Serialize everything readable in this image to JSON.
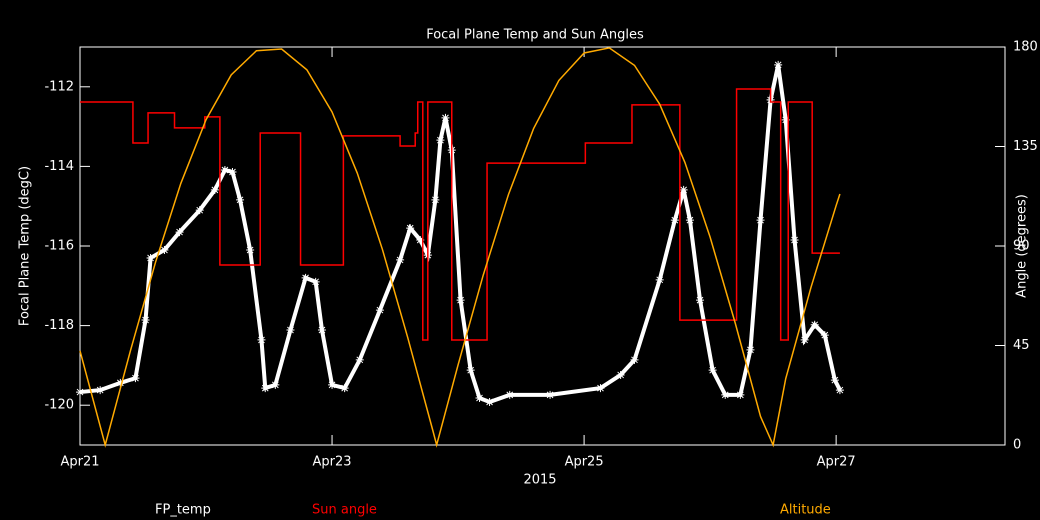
{
  "chart_data": {
    "type": "line",
    "title": "Focal Plane Temp and Sun Angles",
    "xlabel": "2015",
    "ylabel": "Focal Plane Temp (degC)",
    "y2label": "Angle (degrees)",
    "xlim": [
      0,
      7.34
    ],
    "xticks": [
      {
        "value": 0,
        "label": "Apr21"
      },
      {
        "value": 2,
        "label": "Apr23"
      },
      {
        "value": 4,
        "label": "Apr25"
      },
      {
        "value": 6,
        "label": "Apr27"
      }
    ],
    "ylim": [
      -121,
      -111
    ],
    "yticks": [
      -120,
      -118,
      -116,
      -114,
      -112
    ],
    "y2lim": [
      0,
      180
    ],
    "y2ticks": [
      0,
      45,
      90,
      135,
      180
    ],
    "series": [
      {
        "name": "FP_temp",
        "color": "#ffffff",
        "marker": "star",
        "x": [
          0,
          0.16,
          0.32,
          0.44,
          0.52,
          0.56,
          0.67,
          0.79,
          0.95,
          1.07,
          1.15,
          1.21,
          1.27,
          1.35,
          1.44,
          1.47,
          1.55,
          1.67,
          1.79,
          1.87,
          1.92,
          2.0,
          2.1,
          2.22,
          2.38,
          2.54,
          2.62,
          2.7,
          2.76,
          2.82,
          2.86,
          2.9,
          2.95,
          3.02,
          3.1,
          3.17,
          3.25,
          3.41,
          3.73,
          4.13,
          4.29,
          4.4,
          4.6,
          4.72,
          4.79,
          4.84,
          4.92,
          5.02,
          5.12,
          5.24,
          5.32,
          5.4,
          5.48,
          5.54,
          5.6,
          5.67,
          5.75,
          5.83,
          5.91,
          5.99,
          6.03
        ],
        "values": [
          -119.67,
          -119.62,
          -119.44,
          -119.32,
          -117.86,
          -116.3,
          -116.1,
          -115.65,
          -115.1,
          -114.59,
          -114.09,
          -114.14,
          -114.84,
          -116.1,
          -118.36,
          -119.57,
          -119.49,
          -118.11,
          -116.8,
          -116.9,
          -118.11,
          -119.49,
          -119.57,
          -118.86,
          -117.61,
          -116.35,
          -115.55,
          -115.85,
          -116.23,
          -114.84,
          -113.34,
          -112.78,
          -113.59,
          -117.36,
          -119.12,
          -119.82,
          -119.92,
          -119.74,
          -119.74,
          -119.57,
          -119.24,
          -118.86,
          -116.85,
          -115.35,
          -114.59,
          -115.35,
          -117.36,
          -119.12,
          -119.74,
          -119.74,
          -118.61,
          -115.35,
          -112.33,
          -111.45,
          -112.83,
          -115.85,
          -118.36,
          -117.98,
          -118.24,
          -119.37,
          -119.62
        ]
      },
      {
        "name": "Sun angle",
        "color": "#ff0000",
        "axis": "y2",
        "x": [
          0,
          0.42,
          0.42,
          0.54,
          0.54,
          0.75,
          0.75,
          0.99,
          0.99,
          1.11,
          1.11,
          1.43,
          1.43,
          1.75,
          1.75,
          2.09,
          2.09,
          2.54,
          2.54,
          2.66,
          2.66,
          2.68,
          2.68,
          2.72,
          2.72,
          2.76,
          2.76,
          2.95,
          2.95,
          3.23,
          3.23,
          4.01,
          4.01,
          4.38,
          4.38,
          4.76,
          4.76,
          5.21,
          5.21,
          5.48,
          5.48,
          5.56,
          5.56,
          5.62,
          5.62,
          5.81,
          5.81,
          6.03
        ],
        "values": [
          155.1,
          155.1,
          136.6,
          136.6,
          150.2,
          150.2,
          143.4,
          143.4,
          148.4,
          148.4,
          81.4,
          81.4,
          141.1,
          141.1,
          81.4,
          81.4,
          139.8,
          139.8,
          135.2,
          135.2,
          141.1,
          141.1,
          155.1,
          155.1,
          47.5,
          47.5,
          155.1,
          155.1,
          47.5,
          47.5,
          127.5,
          127.5,
          136.6,
          136.6,
          153.8,
          153.8,
          56.5,
          56.5,
          161.0,
          161.0,
          155.1,
          155.1,
          47.5,
          47.5,
          155.1,
          155.1,
          86.8,
          86.8
        ]
      },
      {
        "name": "Altitude",
        "color": "#ffaa00",
        "axis": "y2",
        "x": [
          0,
          0.2,
          0.4,
          0.6,
          0.8,
          1.0,
          1.2,
          1.4,
          1.6,
          1.8,
          2.0,
          2.2,
          2.4,
          2.6,
          2.8,
          2.83,
          3.0,
          3.2,
          3.4,
          3.6,
          3.8,
          4.0,
          4.2,
          4.4,
          4.6,
          4.8,
          5.0,
          5.2,
          5.4,
          5.5,
          5.6,
          5.8,
          6.0,
          6.03
        ],
        "values": [
          42.6,
          0,
          42.6,
          82.8,
          118.3,
          147.1,
          167.4,
          178.3,
          179.1,
          169.7,
          150.6,
          123.0,
          88.4,
          48.7,
          6.5,
          0,
          36.2,
          76.9,
          113.3,
          143.2,
          164.9,
          177.3,
          179.6,
          171.7,
          154.1,
          127.8,
          94.0,
          55.0,
          12.9,
          0,
          30.0,
          71.2,
          108.3,
          113.5
        ]
      }
    ]
  }
}
